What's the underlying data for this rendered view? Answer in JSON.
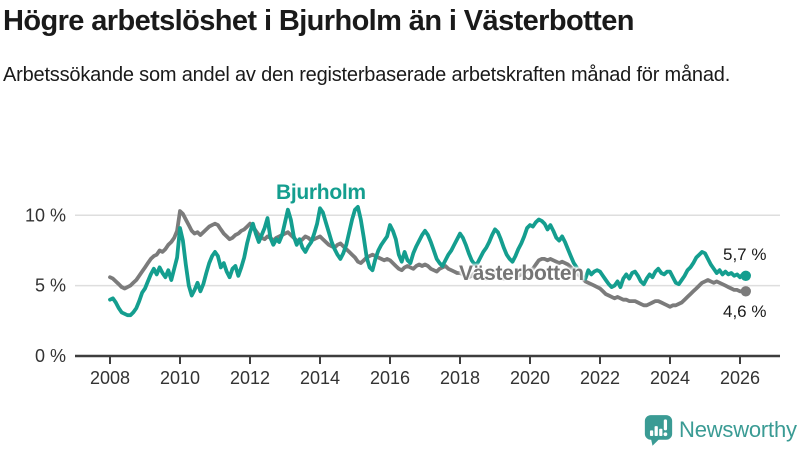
{
  "header": {
    "title": "Högre arbetslöshet i Bjurholm än i Västerbotten",
    "subtitle": "Arbetssökande som andel av den registerbaserade arbetskraften månad för månad."
  },
  "footer": {
    "brand": "Newsworthy",
    "brand_color": "#3a9b94"
  },
  "chart_data": {
    "type": "line",
    "title": "Högre arbetslöshet i Bjurholm än i Västerbotten",
    "x_unit": "month",
    "x_start": "2008-01",
    "x_end": "2026-03",
    "x_ticks": [
      2008,
      2010,
      2012,
      2014,
      2016,
      2018,
      2020,
      2022,
      2024,
      2026
    ],
    "y_ticks": [
      {
        "value": 0,
        "label": "0 %"
      },
      {
        "value": 5,
        "label": "5 %"
      },
      {
        "value": 10,
        "label": "10 %"
      }
    ],
    "ylim": [
      0,
      12.5
    ],
    "grid": "horizontal",
    "legend_position": "inline-labels",
    "colors": {
      "axis": "#3d3d3d",
      "gridline": "#dedede"
    },
    "series": [
      {
        "name": "Bjurholm",
        "key": "bjurholm",
        "color": "#149e8f",
        "end_label": "5,7 %",
        "end_value": 5.7,
        "values": [
          4.0,
          4.1,
          3.8,
          3.4,
          3.1,
          3.0,
          2.9,
          2.9,
          3.1,
          3.4,
          3.9,
          4.5,
          4.8,
          5.3,
          5.8,
          6.2,
          5.8,
          6.3,
          5.9,
          5.6,
          6.1,
          5.4,
          6.2,
          7.0,
          9.1,
          8.2,
          6.5,
          5.0,
          4.3,
          4.7,
          5.2,
          4.6,
          5.1,
          5.9,
          6.6,
          7.1,
          7.4,
          7.1,
          6.3,
          6.6,
          6.0,
          5.6,
          6.2,
          6.4,
          5.7,
          6.3,
          7.0,
          8.0,
          8.8,
          9.4,
          8.7,
          8.1,
          8.6,
          9.1,
          9.8,
          8.4,
          7.9,
          8.3,
          8.1,
          8.6,
          9.5,
          10.4,
          9.7,
          8.5,
          7.9,
          8.3,
          7.7,
          7.4,
          7.8,
          8.1,
          8.7,
          9.4,
          10.5,
          10.2,
          9.5,
          8.8,
          8.1,
          7.6,
          7.2,
          6.9,
          7.3,
          7.9,
          8.8,
          9.7,
          10.4,
          10.6,
          9.7,
          8.4,
          7.0,
          6.3,
          6.1,
          6.9,
          7.5,
          7.9,
          8.2,
          8.5,
          9.3,
          8.9,
          8.3,
          7.2,
          6.7,
          7.4,
          6.8,
          6.6,
          7.3,
          7.8,
          8.2,
          8.6,
          8.9,
          8.6,
          8.1,
          7.5,
          6.9,
          6.6,
          6.4,
          6.8,
          7.2,
          7.5,
          7.9,
          8.3,
          8.7,
          8.4,
          7.9,
          7.3,
          6.8,
          6.5,
          6.6,
          7.0,
          7.4,
          7.7,
          8.1,
          8.6,
          9.0,
          8.8,
          8.3,
          7.7,
          7.2,
          6.9,
          6.7,
          7.1,
          7.6,
          8.0,
          8.5,
          9.1,
          9.3,
          9.2,
          9.5,
          9.7,
          9.6,
          9.4,
          9.0,
          9.3,
          8.9,
          8.4,
          8.2,
          8.5,
          8.1,
          7.6,
          7.1,
          6.6,
          6.3,
          6.0,
          5.6,
          5.5,
          6.1,
          5.8,
          6.0,
          6.1,
          6.0,
          5.7,
          5.4,
          5.1,
          4.9,
          5.0,
          5.3,
          4.9,
          5.5,
          5.8,
          5.5,
          5.9,
          6.0,
          5.7,
          5.3,
          5.1,
          5.5,
          5.8,
          5.6,
          6.0,
          6.2,
          5.9,
          5.8,
          6.0,
          6.0,
          5.6,
          5.2,
          5.1,
          5.4,
          5.7,
          6.1,
          6.3,
          6.6,
          7.0,
          7.2,
          7.4,
          7.3,
          6.9,
          6.5,
          6.2,
          5.9,
          6.1,
          5.8,
          6.0,
          5.8,
          5.9,
          5.7,
          5.8,
          5.6,
          5.8,
          5.7
        ]
      },
      {
        "name": "Västerbotten",
        "key": "vasterbotten",
        "color": "#7b7b7b",
        "label_color": "#757575",
        "end_label": "4,6 %",
        "end_value": 4.6,
        "values": [
          5.6,
          5.5,
          5.3,
          5.1,
          4.9,
          4.8,
          4.9,
          5.0,
          5.2,
          5.4,
          5.7,
          6.0,
          6.3,
          6.6,
          6.9,
          7.1,
          7.2,
          7.5,
          7.4,
          7.6,
          7.9,
          8.1,
          8.4,
          8.9,
          10.3,
          10.1,
          9.7,
          9.3,
          8.9,
          8.7,
          8.8,
          8.6,
          8.8,
          9.0,
          9.2,
          9.3,
          9.4,
          9.3,
          9.0,
          8.7,
          8.5,
          8.3,
          8.4,
          8.6,
          8.7,
          8.9,
          9.0,
          9.2,
          9.4,
          9.2,
          8.9,
          8.6,
          8.4,
          8.3,
          8.5,
          8.4,
          8.2,
          8.4,
          8.5,
          8.6,
          8.7,
          8.8,
          8.6,
          8.4,
          8.2,
          8.1,
          8.3,
          8.5,
          8.4,
          8.2,
          8.3,
          8.4,
          8.5,
          8.3,
          8.1,
          7.9,
          7.8,
          7.7,
          7.9,
          8.0,
          7.8,
          7.6,
          7.4,
          7.2,
          7.0,
          6.7,
          6.6,
          6.8,
          7.0,
          7.1,
          7.2,
          7.1,
          7.0,
          6.9,
          6.8,
          6.9,
          6.8,
          6.6,
          6.4,
          6.2,
          6.1,
          6.3,
          6.4,
          6.3,
          6.2,
          6.4,
          6.5,
          6.4,
          6.5,
          6.4,
          6.2,
          6.1,
          6.0,
          6.2,
          6.3,
          6.4,
          6.2,
          6.1,
          6.0,
          5.9,
          5.9,
          5.8,
          5.7,
          5.6,
          5.7,
          5.9,
          5.8,
          5.7,
          5.6,
          5.5,
          5.6,
          5.7,
          5.8,
          5.7,
          5.6,
          5.5,
          5.6,
          5.8,
          5.9,
          5.8,
          5.7,
          5.8,
          5.9,
          6.0,
          6.1,
          6.2,
          6.5,
          6.8,
          6.9,
          6.9,
          6.8,
          6.9,
          6.8,
          6.7,
          6.6,
          6.7,
          6.6,
          6.5,
          6.3,
          6.1,
          5.9,
          5.7,
          5.5,
          5.3,
          5.2,
          5.1,
          5.0,
          4.9,
          4.8,
          4.6,
          4.4,
          4.3,
          4.2,
          4.1,
          4.2,
          4.1,
          4.0,
          4.0,
          3.9,
          3.9,
          3.9,
          3.8,
          3.7,
          3.6,
          3.6,
          3.7,
          3.8,
          3.9,
          3.9,
          3.8,
          3.7,
          3.6,
          3.5,
          3.6,
          3.6,
          3.7,
          3.8,
          4.0,
          4.2,
          4.4,
          4.6,
          4.8,
          5.0,
          5.2,
          5.3,
          5.4,
          5.3,
          5.2,
          5.3,
          5.2,
          5.1,
          5.0,
          4.9,
          4.8,
          4.7,
          4.7,
          4.6,
          4.6,
          4.6
        ]
      }
    ]
  }
}
